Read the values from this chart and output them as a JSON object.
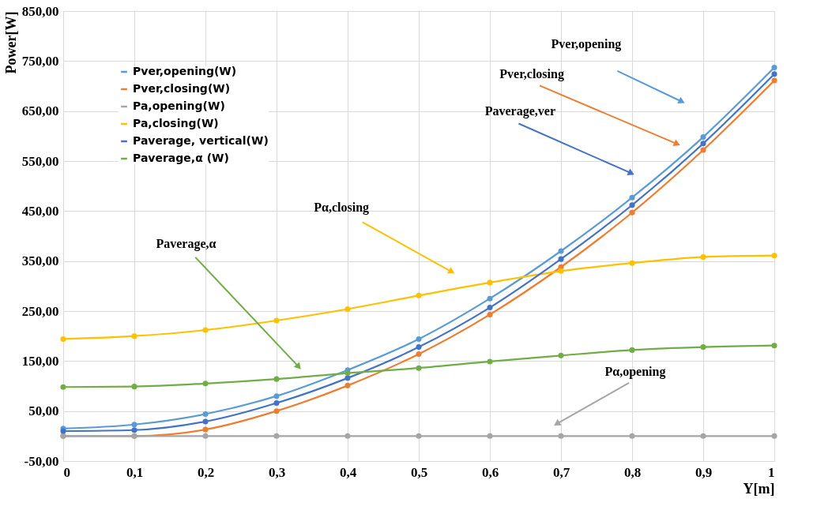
{
  "chart_data": {
    "type": "line",
    "xlabel": "Y[m]",
    "ylabel": "Power[W]",
    "x": [
      0,
      0.1,
      0.2,
      0.3,
      0.4,
      0.5,
      0.6,
      0.7,
      0.8,
      0.9,
      1
    ],
    "xlim": [
      0,
      1
    ],
    "xticks": [
      0,
      {
        "value": 0.1,
        "label": "0,1"
      },
      {
        "value": 0.2,
        "label": "0,2"
      },
      {
        "value": 0.3,
        "label": "0,3"
      },
      {
        "value": 0.4,
        "label": "0,4"
      },
      {
        "value": 0.5,
        "label": "0,5"
      },
      {
        "value": 0.6,
        "label": "0,6"
      },
      {
        "value": 0.7,
        "label": "0,7"
      },
      {
        "value": 0.8,
        "label": "0,8"
      },
      {
        "value": 0.9,
        "label": "0,9"
      },
      1
    ],
    "ylim": [
      -50,
      850
    ],
    "yticks": [
      {
        "value": -50,
        "label": "-50,00"
      },
      {
        "value": 50,
        "label": "50,00"
      },
      {
        "value": 150,
        "label": "150,00"
      },
      {
        "value": 250,
        "label": "250,00"
      },
      {
        "value": 350,
        "label": "350,00"
      },
      {
        "value": 450,
        "label": "450,00"
      },
      {
        "value": 550,
        "label": "550,00"
      },
      {
        "value": 650,
        "label": "650,00"
      },
      {
        "value": 750,
        "label": "750,00"
      },
      {
        "value": 850,
        "label": "850,00"
      }
    ],
    "series": [
      {
        "name": "Pver,opening(W)",
        "color": "#5b9bd5",
        "values": [
          15,
          23,
          44,
          80,
          132,
          194,
          275,
          370,
          477,
          598,
          737
        ]
      },
      {
        "name": "Pver,closing(W)",
        "color": "#ed7d31",
        "values": [
          0,
          0,
          13,
          50,
          101,
          164,
          243,
          338,
          447,
          572,
          711
        ]
      },
      {
        "name": "Pa,opening(W)",
        "color": "#a5a5a5",
        "values": [
          0,
          0,
          0,
          0,
          0,
          0,
          0,
          0,
          0,
          0,
          0
        ]
      },
      {
        "name": "Pa,closing(W)",
        "color": "#ffc000",
        "values": [
          194,
          200,
          212,
          231,
          254,
          281,
          307,
          330,
          346,
          358,
          361
        ]
      },
      {
        "name": "Paverage, vertical(W)",
        "color": "#4472c4",
        "values": [
          10,
          12,
          29,
          66,
          116,
          178,
          257,
          354,
          462,
          585,
          724
        ]
      },
      {
        "name": "Paverage,α (W)",
        "color": "#70ad47",
        "values": [
          98,
          99,
          105,
          114,
          126,
          136,
          149,
          161,
          172,
          178,
          181
        ]
      }
    ],
    "annotations": [
      "Pver,opening",
      "Pver,closing",
      "Paverage,ver",
      "Pα,closing",
      "Paverage,α",
      "Pα,opening"
    ],
    "marker": "circle",
    "line_style": "solid",
    "grid": true,
    "legend": "top left"
  }
}
